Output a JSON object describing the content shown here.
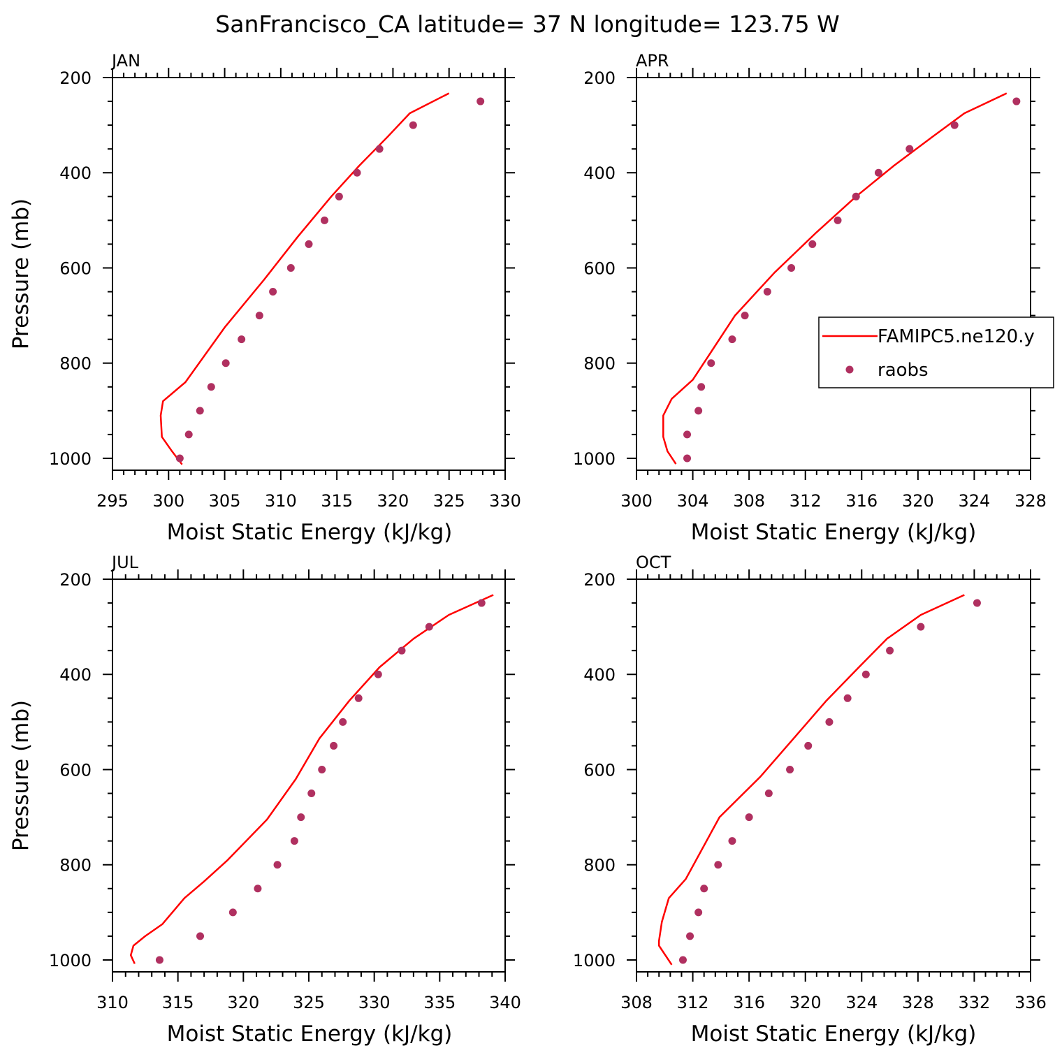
{
  "title": "SanFrancisco_CA  latitude= 37 N longitude= 123.75 W",
  "legend": {
    "model_label": "FAMIPC5.ne120.y",
    "obs_label": "raobs"
  },
  "colors": {
    "model_line": "#ff0000",
    "obs_marker": "#b03060",
    "axes": "#000000"
  },
  "chart_data": [
    {
      "type": "line",
      "panel": "JAN",
      "xlabel": "Moist Static Energy (kJ/kg)",
      "ylabel": "Pressure (mb)",
      "xlim": [
        295,
        330
      ],
      "xticks": [
        295,
        300,
        305,
        310,
        315,
        320,
        325,
        330
      ],
      "ylim": [
        1025,
        200
      ],
      "yticks": [
        200,
        400,
        600,
        800,
        1000
      ],
      "series": [
        {
          "name": "FAMIPC5.ne120.y",
          "x": [
            325,
            321.5,
            319.5,
            317,
            314.5,
            311.5,
            308.5,
            305,
            301.5,
            299.5,
            299.3,
            299.4,
            300.3,
            301.2
          ],
          "y": [
            233,
            275,
            325,
            385,
            450,
            535,
            625,
            725,
            840,
            880,
            910,
            955,
            985,
            1013
          ]
        },
        {
          "name": "raobs",
          "x": [
            327.8,
            321.8,
            318.8,
            316.8,
            315.2,
            313.9,
            312.5,
            310.9,
            309.3,
            308.1,
            306.5,
            305.1,
            303.8,
            302.8,
            301.8,
            301
          ],
          "y": [
            250,
            300,
            350,
            400,
            450,
            500,
            550,
            600,
            650,
            700,
            750,
            800,
            850,
            900,
            950,
            1000
          ]
        }
      ]
    },
    {
      "type": "line",
      "panel": "APR",
      "xlabel": "Moist Static Energy (kJ/kg)",
      "ylabel": "",
      "xlim": [
        300,
        328
      ],
      "xticks": [
        300,
        304,
        308,
        312,
        316,
        320,
        324,
        328
      ],
      "ylim": [
        1025,
        200
      ],
      "yticks": [
        200,
        400,
        600,
        800,
        1000
      ],
      "series": [
        {
          "name": "FAMIPC5.ne120.y",
          "x": [
            326.3,
            323.3,
            321,
            318.3,
            315.6,
            312.8,
            309.8,
            307,
            304,
            302.5,
            301.9,
            301.9,
            302.2,
            302.8
          ],
          "y": [
            233,
            275,
            325,
            385,
            450,
            525,
            610,
            700,
            835,
            875,
            910,
            955,
            985,
            1012
          ]
        },
        {
          "name": "raobs",
          "x": [
            327,
            322.6,
            319.4,
            317.2,
            315.6,
            314.3,
            312.5,
            311,
            309.3,
            307.7,
            306.8,
            305.3,
            304.6,
            304.4,
            303.6,
            303.6
          ],
          "y": [
            250,
            300,
            350,
            400,
            450,
            500,
            550,
            600,
            650,
            700,
            750,
            800,
            850,
            900,
            950,
            1000
          ]
        }
      ]
    },
    {
      "type": "line",
      "panel": "JUL",
      "xlabel": "Moist Static Energy (kJ/kg)",
      "ylabel": "Pressure (mb)",
      "xlim": [
        310,
        340
      ],
      "xticks": [
        310,
        315,
        320,
        325,
        330,
        335,
        340
      ],
      "ylim": [
        1025,
        200
      ],
      "yticks": [
        200,
        400,
        600,
        800,
        1000
      ],
      "series": [
        {
          "name": "FAMIPC5.ne120.y",
          "x": [
            339.1,
            335.7,
            333,
            330.4,
            328.1,
            325.8,
            324,
            321.8,
            318.8,
            317,
            315.5,
            313.8,
            312.5,
            311.6,
            311.4,
            311.7
          ],
          "y": [
            233,
            275,
            325,
            385,
            455,
            535,
            620,
            705,
            790,
            835,
            870,
            925,
            950,
            970,
            990,
            1008
          ]
        },
        {
          "name": "raobs",
          "x": [
            338.2,
            334.2,
            332.1,
            330.3,
            328.8,
            327.6,
            326.9,
            326,
            325.2,
            324.4,
            323.9,
            322.6,
            321.1,
            319.2,
            316.7,
            313.6
          ],
          "y": [
            250,
            300,
            350,
            400,
            450,
            500,
            550,
            600,
            650,
            700,
            750,
            800,
            850,
            900,
            950,
            1000
          ]
        }
      ]
    },
    {
      "type": "line",
      "panel": "OCT",
      "xlabel": "Moist Static Energy (kJ/kg)",
      "ylabel": "",
      "xlim": [
        308,
        336
      ],
      "xticks": [
        308,
        312,
        316,
        320,
        324,
        328,
        332,
        336
      ],
      "ylim": [
        1025,
        200
      ],
      "yticks": [
        200,
        400,
        600,
        800,
        1000
      ],
      "series": [
        {
          "name": "FAMIPC5.ne120.y",
          "x": [
            331.3,
            328.2,
            325.8,
            323.8,
            321.5,
            319.3,
            316.8,
            313.9,
            311.5,
            310.3,
            309.8,
            309.6,
            309.6,
            310.5
          ],
          "y": [
            233,
            275,
            325,
            385,
            455,
            530,
            615,
            700,
            830,
            870,
            920,
            960,
            970,
            1010
          ]
        },
        {
          "name": "raobs",
          "x": [
            332.2,
            328.2,
            326,
            324.3,
            323,
            321.7,
            320.2,
            318.9,
            317.4,
            316,
            314.8,
            313.8,
            312.8,
            312.4,
            311.8,
            311.3
          ],
          "y": [
            250,
            300,
            350,
            400,
            450,
            500,
            550,
            600,
            650,
            700,
            750,
            800,
            850,
            900,
            950,
            1000
          ]
        }
      ]
    }
  ]
}
